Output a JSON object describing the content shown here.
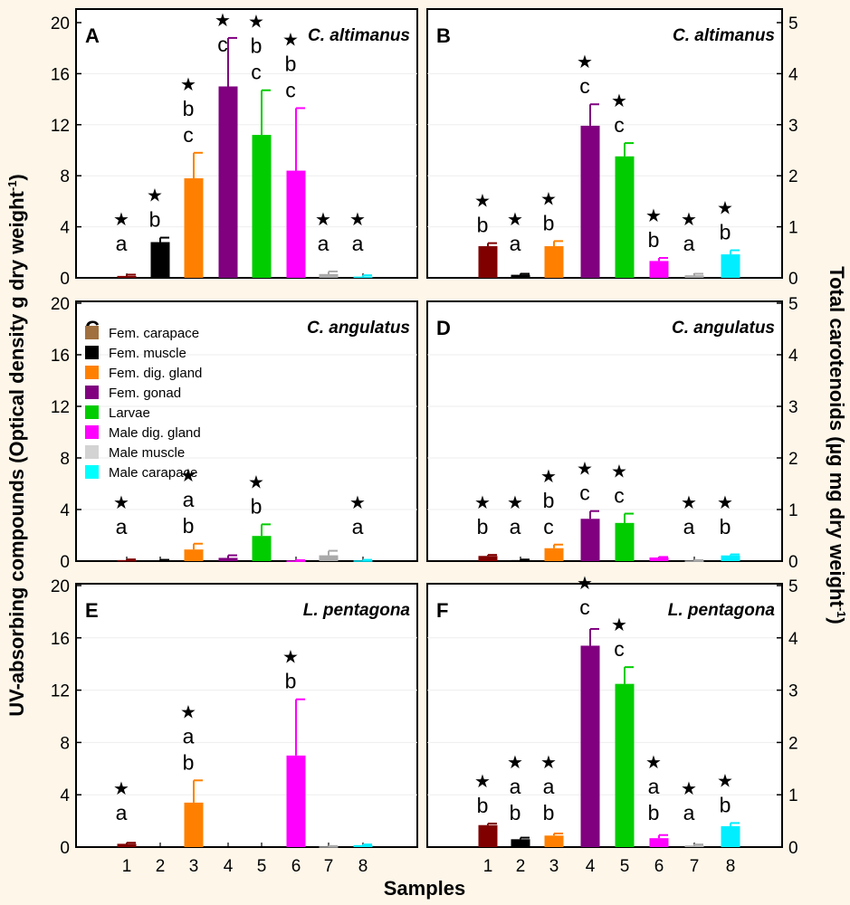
{
  "figure": {
    "y_label_left": "UV-absorbing compounds (Optical density g dry weight",
    "y_label_left_sup": "-1",
    "y_label_left_end": ")",
    "y_label_right": "Total carotenoids (µg mg dry weight",
    "y_label_right_sup": "-1",
    "y_label_right_end": ")",
    "x_label": "Samples",
    "x_ticks": [
      "1",
      "2",
      "3",
      "4",
      "5",
      "6",
      "7",
      "8"
    ],
    "legend": [
      "Fem. carapace",
      "Fem. muscle",
      "Fem. dig. gland",
      "Fem. gonad",
      "Larvae",
      "Male dig. gland",
      "Male muscle",
      "Male carapace"
    ],
    "colors": [
      "#800000",
      "#000000",
      "#ff8000",
      "#800080",
      "#00cc00",
      "#ff00ff",
      "#aaaaaa",
      "#00eeff"
    ],
    "legend_colors": [
      "#a0703f",
      "#000000",
      "#ff8000",
      "#800080",
      "#00cc00",
      "#ff00ff",
      "#d3d3d3",
      "#00ffff"
    ],
    "star_symbol": "★"
  },
  "chart_data": [
    {
      "type": "bar",
      "panel": "A",
      "species": "C. altimanus",
      "axis": "left",
      "ylabel": "UV-absorbing compounds (Optical density g dry weight-1)",
      "ylim": [
        0,
        20
      ],
      "yticks": [
        "0",
        "4",
        "8",
        "12",
        "16",
        "20"
      ],
      "categories": [
        "1",
        "2",
        "3",
        "4",
        "5",
        "6",
        "7",
        "8"
      ],
      "values": [
        0.15,
        2.8,
        7.8,
        15.0,
        11.2,
        8.4,
        0.3,
        0.1
      ],
      "errors": [
        0.1,
        0.35,
        2.0,
        3.8,
        3.5,
        4.9,
        0.2,
        0.1
      ],
      "letters": [
        [
          "a"
        ],
        [
          "b"
        ],
        [
          "b",
          "c"
        ],
        [
          "c"
        ],
        [
          "b",
          "c"
        ],
        [
          "b",
          "c"
        ],
        [
          "a"
        ],
        [
          "a"
        ]
      ],
      "stars": [
        true,
        true,
        true,
        true,
        true,
        true,
        true,
        true
      ]
    },
    {
      "type": "bar",
      "panel": "B",
      "species": "C. altimanus",
      "axis": "right",
      "ylabel": "Total carotenoids (µg mg dry weight-1)",
      "ylim": [
        0,
        5
      ],
      "yticks": [
        "0",
        "1",
        "2",
        "3",
        "4",
        "5"
      ],
      "categories": [
        "1",
        "2",
        "3",
        "4",
        "5",
        "6",
        "7",
        "8"
      ],
      "values": [
        0.62,
        0.06,
        0.62,
        2.98,
        2.38,
        0.33,
        0.05,
        0.46
      ],
      "errors": [
        0.06,
        0.02,
        0.1,
        0.42,
        0.26,
        0.06,
        0.03,
        0.08
      ],
      "letters": [
        [
          "b"
        ],
        [
          "a"
        ],
        [
          "b"
        ],
        [
          "c"
        ],
        [
          "c"
        ],
        [
          "b"
        ],
        [
          "a"
        ],
        [
          "b"
        ]
      ],
      "stars": [
        true,
        true,
        true,
        true,
        true,
        true,
        true,
        true
      ]
    },
    {
      "type": "bar",
      "panel": "C",
      "species": "C. angulatus",
      "axis": "left",
      "ylabel": "UV-absorbing compounds (Optical density g dry weight-1)",
      "ylim": [
        0,
        20
      ],
      "yticks": [
        "0",
        "4",
        "8",
        "12",
        "16",
        "20"
      ],
      "categories": [
        "1",
        "2",
        "3",
        "4",
        "5",
        "6",
        "7",
        "8"
      ],
      "values": [
        0.08,
        0.05,
        0.9,
        0.25,
        1.95,
        0.04,
        0.45,
        0.05
      ],
      "errors": [
        0.05,
        0.05,
        0.45,
        0.2,
        0.9,
        0.03,
        0.35,
        0.05
      ],
      "letters": [
        [
          "a"
        ],
        [],
        [
          "a",
          "b"
        ],
        [],
        [
          "b"
        ],
        [],
        [],
        [
          "a"
        ]
      ],
      "stars": [
        true,
        false,
        true,
        false,
        true,
        false,
        false,
        true
      ]
    },
    {
      "type": "bar",
      "panel": "D",
      "species": "C. angulatus",
      "axis": "right",
      "ylabel": "Total carotenoids (µg mg dry weight-1)",
      "ylim": [
        0,
        5
      ],
      "yticks": [
        "0",
        "1",
        "2",
        "3",
        "4",
        "5"
      ],
      "categories": [
        "1",
        "2",
        "3",
        "4",
        "5",
        "6",
        "7",
        "8"
      ],
      "values": [
        0.1,
        0.02,
        0.25,
        0.82,
        0.74,
        0.07,
        0.01,
        0.11
      ],
      "errors": [
        0.02,
        0.01,
        0.07,
        0.15,
        0.18,
        0.01,
        0.01,
        0.02
      ],
      "letters": [
        [
          "b"
        ],
        [
          "a"
        ],
        [
          "b",
          "c"
        ],
        [
          "c"
        ],
        [
          "c"
        ],
        [],
        [
          "a"
        ],
        [
          "b"
        ]
      ],
      "stars": [
        true,
        true,
        true,
        true,
        true,
        false,
        true,
        true
      ]
    },
    {
      "type": "bar",
      "panel": "E",
      "species": "L. pentagona",
      "axis": "left",
      "ylabel": "UV-absorbing compounds (Optical density g dry weight-1)",
      "ylim": [
        0,
        20
      ],
      "yticks": [
        "0",
        "4",
        "8",
        "12",
        "16",
        "20"
      ],
      "categories": [
        "1",
        "2",
        "3",
        "4",
        "5",
        "6",
        "7",
        "8"
      ],
      "values": [
        0.25,
        0,
        3.4,
        0,
        0,
        7.0,
        0.05,
        0.15
      ],
      "errors": [
        0.08,
        0,
        1.7,
        0,
        0,
        4.3,
        0.03,
        0.05
      ],
      "letters": [
        [
          "a"
        ],
        [],
        [
          "a",
          "b"
        ],
        [],
        [],
        [
          "b"
        ],
        [],
        []
      ],
      "stars": [
        true,
        false,
        true,
        false,
        false,
        true,
        false,
        false
      ]
    },
    {
      "type": "bar",
      "panel": "F",
      "species": "L. pentagona",
      "axis": "right",
      "ylabel": "Total carotenoids (µg mg dry weight-1)",
      "ylim": [
        0,
        5
      ],
      "yticks": [
        "0",
        "1",
        "2",
        "3",
        "4",
        "5"
      ],
      "categories": [
        "1",
        "2",
        "3",
        "4",
        "5",
        "6",
        "7",
        "8"
      ],
      "values": [
        0.42,
        0.15,
        0.22,
        3.85,
        3.12,
        0.17,
        0.03,
        0.4
      ],
      "errors": [
        0.03,
        0.03,
        0.04,
        0.32,
        0.32,
        0.06,
        0.02,
        0.06
      ],
      "letters": [
        [
          "b"
        ],
        [
          "a",
          "b"
        ],
        [
          "a",
          "b"
        ],
        [
          "c"
        ],
        [
          "c"
        ],
        [
          "a",
          "b"
        ],
        [
          "a"
        ],
        [
          "b"
        ]
      ],
      "stars": [
        true,
        true,
        true,
        true,
        true,
        true,
        true,
        true
      ]
    }
  ]
}
